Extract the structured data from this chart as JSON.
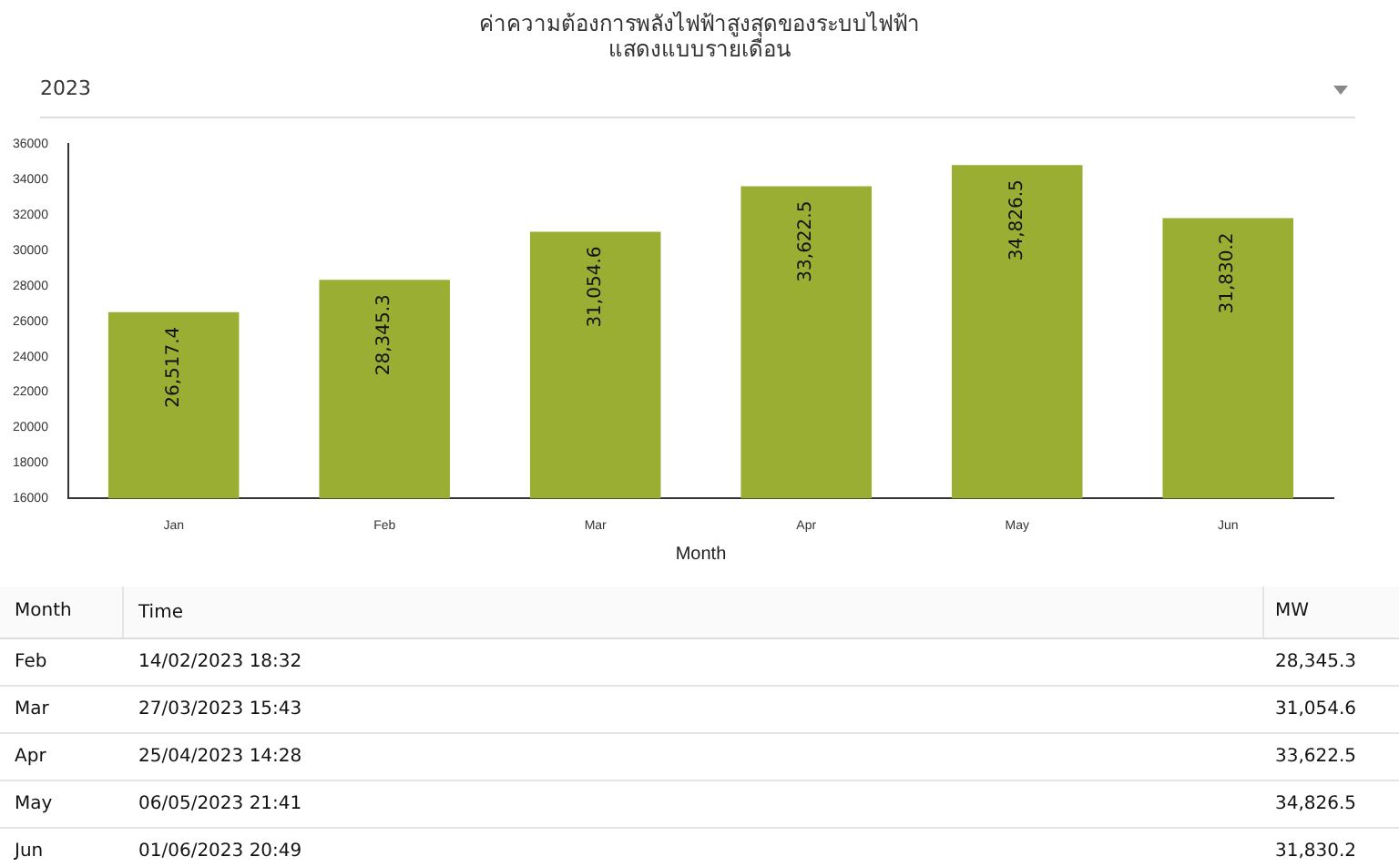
{
  "chart_data": {
    "type": "bar",
    "title": "ค่าความต้องการพลังไฟฟ้าสูงสุดของระบบไฟฟ้า",
    "subtitle": "แสดงแบบรายเดือน",
    "xlabel": "Month",
    "categories": [
      "Jan",
      "Feb",
      "Mar",
      "Apr",
      "May",
      "Jun"
    ],
    "values": [
      26517.4,
      28345.3,
      31054.6,
      33622.5,
      34826.5,
      31830.2
    ],
    "color": "#9aae34",
    "ylim": [
      16000,
      36000
    ],
    "yticks": [
      16000,
      18000,
      20000,
      22000,
      24000,
      26000,
      28000,
      30000,
      32000,
      34000,
      36000
    ],
    "value_labels": [
      "26,517.4",
      "28,345.3",
      "31,054.6",
      "33,622.5",
      "34,826.5",
      "31,830.2"
    ],
    "grid": false,
    "legend": false,
    "data_labels": true,
    "annotations": [
      "2023",
      "Month",
      "Time",
      "MW",
      "14/02/2023  18:32",
      "27/03/2023  15:43",
      "25/04/2023  14:28",
      "06/05/2023  21:41",
      "01/06/2023  20:49"
    ]
  }
}
